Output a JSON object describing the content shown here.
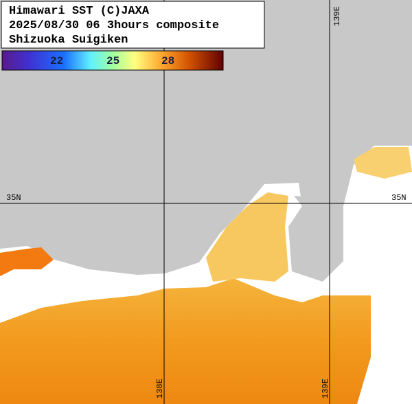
{
  "header": {
    "lines": [
      "Himawari SST (C)JAXA",
      "2025/08/30 06 3hours composite",
      "Shizuoka Suigiken"
    ]
  },
  "colorbar": {
    "labels": [
      "22",
      "25",
      "28"
    ]
  },
  "graticule": {
    "lat": "35N",
    "lon": [
      "138E",
      "139E"
    ]
  }
}
